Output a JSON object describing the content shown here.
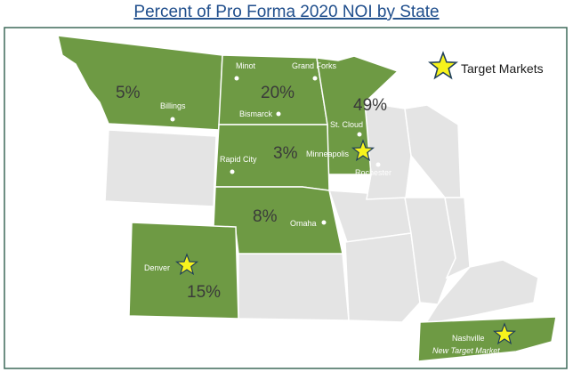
{
  "header": {
    "title": "Percent of Pro Forma 2020 NOI by State"
  },
  "legend": {
    "label": "Target Markets"
  },
  "state_shares": [
    "5%",
    "20%",
    "49%",
    "3%",
    "8%",
    "15%"
  ],
  "cities": [
    "Minot",
    "Grand Forks",
    "Billings",
    "Bismarck",
    "St. Cloud",
    "Rapid City",
    "Minneapolis",
    "Rochester",
    "Omaha",
    "Denver",
    "Nashville"
  ],
  "note": "New Target Market"
}
